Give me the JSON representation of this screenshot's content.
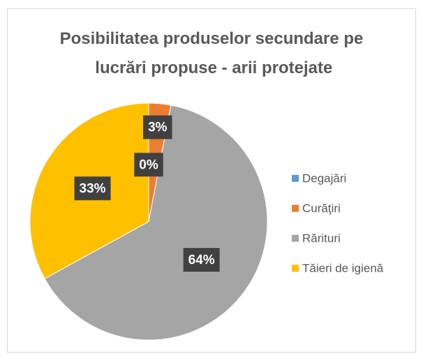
{
  "chart_data": {
    "type": "pie",
    "title": "Posibilitatea produselor secundare pe lucrări propuse - arii protejate",
    "categories": [
      "Degajări",
      "Curăţiri",
      "Rărituri",
      "Tăieri de igienă"
    ],
    "values": [
      0,
      3,
      64,
      33
    ],
    "value_labels": [
      "0%",
      "3%",
      "64%",
      "33%"
    ],
    "colors": [
      "#5b9bd5",
      "#ed7d31",
      "#a5a5a5",
      "#ffc000"
    ],
    "legend": "right"
  }
}
